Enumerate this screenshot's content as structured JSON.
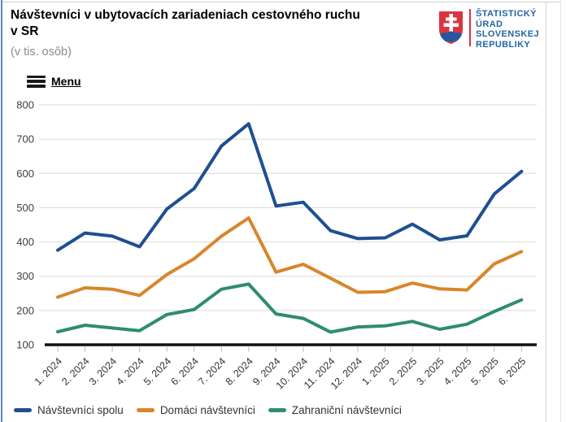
{
  "header": {
    "title_line1": "Návštevníci v ubytovacích zariadeniach cestovného ruchu",
    "title_line2": "v SR",
    "subtitle": "(v tis. osôb)",
    "menu_label": "Menu"
  },
  "logo": {
    "org_lines": [
      "ŠTATISTICKÝ",
      "ÚRAD",
      "SLOVENSKEJ",
      "REPUBLIKY"
    ],
    "colors": {
      "text_blue": "#2166a5",
      "divider_red": "#d93540",
      "shield_red": "#d93540",
      "shield_blue": "#2458a5",
      "cross_white": "#ffffff"
    }
  },
  "chart_data": {
    "type": "line",
    "title": "Návštevníci v ubytovacích zariadeniach cestovného ruchu v SR",
    "subtitle": "(v tis. osôb)",
    "categories": [
      "1. 2024",
      "2. 2024",
      "3. 2024",
      "4. 2024",
      "5. 2024",
      "6. 2024",
      "7. 2024",
      "8. 2024",
      "9. 2024",
      "10. 2024",
      "11. 2024",
      "12. 2024",
      "1. 2025",
      "2. 2025",
      "3. 2025",
      "4. 2025",
      "5. 2025",
      "6. 2025"
    ],
    "series": [
      {
        "key": "navstevnici-spolu",
        "name": "Návštevníci spolu",
        "color": "#1e4f91",
        "values": [
          376,
          426,
          417,
          386,
          496,
          556,
          680,
          745,
          505,
          516,
          433,
          410,
          412,
          452,
          406,
          418,
          540,
          606
        ]
      },
      {
        "key": "domaci-navstevnici",
        "name": "Domáci návštevníci",
        "color": "#d8862b",
        "values": [
          239,
          266,
          262,
          244,
          305,
          351,
          417,
          470,
          312,
          335,
          294,
          253,
          255,
          280,
          263,
          260,
          336,
          372
        ]
      },
      {
        "key": "zahranicni-navstevnici",
        "name": "Zahraniční návštevníci",
        "color": "#2e8c72",
        "values": [
          138,
          157,
          149,
          141,
          188,
          203,
          262,
          277,
          190,
          177,
          137,
          152,
          155,
          168,
          145,
          160,
          197,
          231
        ]
      }
    ],
    "ylim": [
      100,
      800
    ],
    "ytick_step": 100,
    "yticks": [
      100,
      200,
      300,
      400,
      500,
      600,
      700,
      800
    ],
    "grid": true,
    "legend_position": "bottom"
  }
}
